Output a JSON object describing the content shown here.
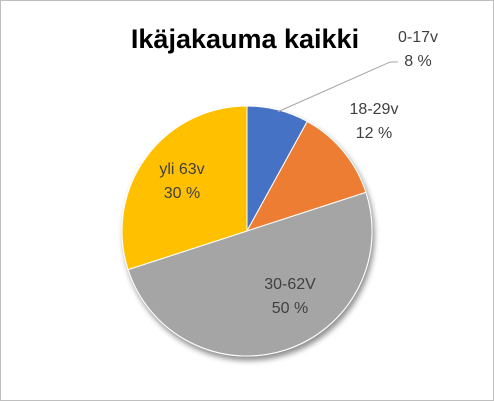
{
  "chart_data": {
    "type": "pie",
    "title": "Ikäjakauma kaikki",
    "categories": [
      "0-17v",
      "18-29v",
      "30-62V",
      "yli 63v"
    ],
    "values": [
      8,
      12,
      50,
      30
    ],
    "value_labels": [
      "8 %",
      "12 %",
      "50 %",
      "30 %"
    ],
    "colors": [
      "#4472c4",
      "#ed7d31",
      "#a5a5a5",
      "#ffc000"
    ]
  }
}
